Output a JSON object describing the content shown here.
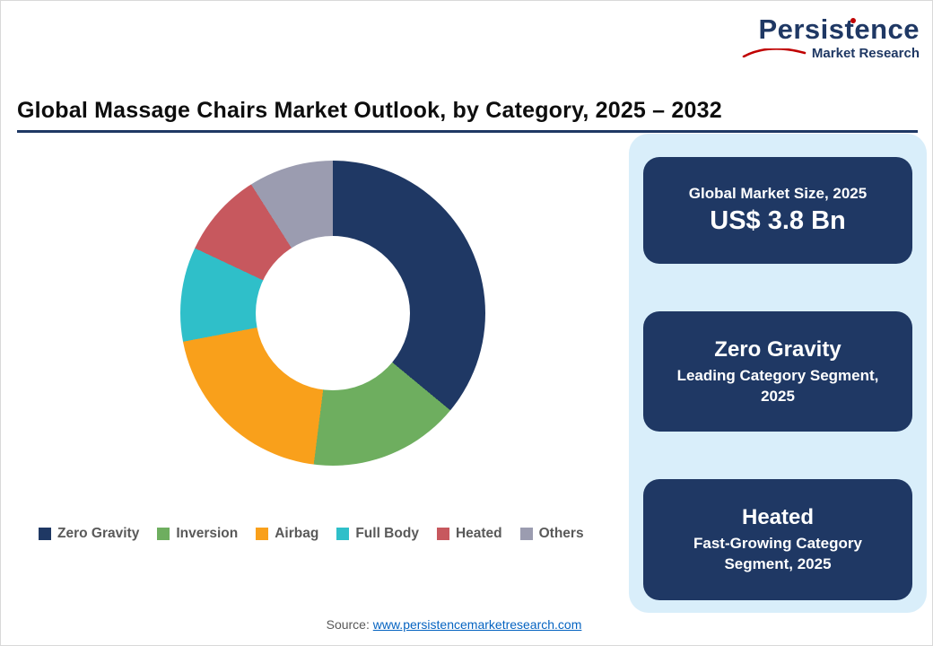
{
  "logo": {
    "name": "Persistence",
    "subname": "Market Research",
    "accent_color": "#C00000",
    "brand_color": "#1F3864"
  },
  "header": {
    "title": "Global Massage Chairs Market Outlook, by Category, 2025 – 2032"
  },
  "chart_data": {
    "type": "pie",
    "title": "Global Massage Chairs Market Outlook, by Category, 2025 – 2032",
    "categories": [
      "Zero Gravity",
      "Inversion",
      "Airbag",
      "Full Body",
      "Heated",
      "Others"
    ],
    "values": [
      36,
      16,
      20,
      10,
      9,
      9
    ],
    "colors": [
      "#1F3864",
      "#6EAE5F",
      "#F9A01B",
      "#2FBFC9",
      "#C7585E",
      "#9B9CB0"
    ],
    "legend_position": "bottom",
    "donut": true,
    "start_angle_deg": 0
  },
  "side_panel": {
    "cards": [
      {
        "line1": "Global Market Size, 2025",
        "line2": "US$ 3.8 Bn"
      },
      {
        "line1": "Zero Gravity",
        "line2": "Leading Category Segment, 2025"
      },
      {
        "line1": "Heated",
        "line2": "Fast-Growing Category Segment, 2025"
      }
    ]
  },
  "footer": {
    "source_label": "Source:",
    "source_link": "www.persistencemarketresearch.com"
  }
}
